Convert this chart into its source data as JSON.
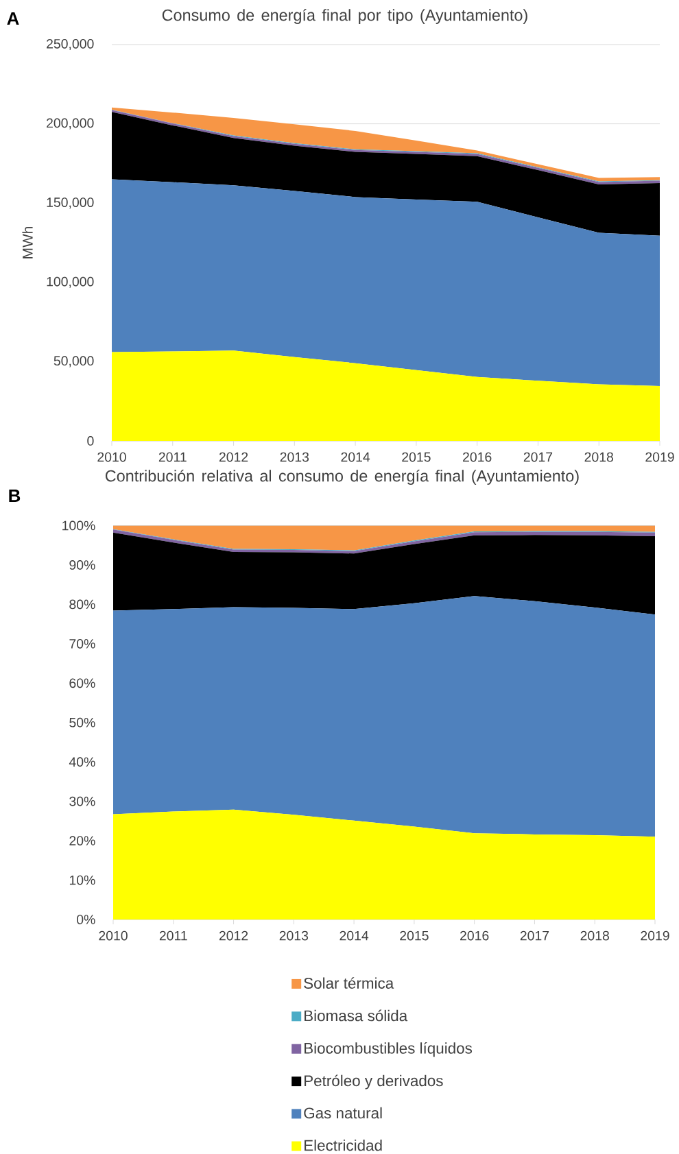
{
  "chart_data": [
    {
      "type": "area",
      "stacked": true,
      "title": "Consumo de energía final por tipo (Ayuntamiento)",
      "ylabel": "MWh",
      "annotations": [
        "A"
      ],
      "categories": [
        "2010",
        "2011",
        "2012",
        "2013",
        "2014",
        "2015",
        "2016",
        "2017",
        "2018",
        "2019"
      ],
      "ylim": [
        0,
        250000
      ],
      "yticks": [
        0,
        {
          "value": 50000,
          "label": "50,000"
        },
        {
          "value": 100000,
          "label": "100,000"
        },
        {
          "value": 150000,
          "label": "150,000"
        },
        {
          "value": 200000,
          "label": "200,000"
        },
        {
          "value": 250000,
          "label": "250,000"
        }
      ],
      "grid": "y",
      "series": [
        {
          "color": "#ffff00",
          "values": [
            56000,
            56400,
            57000,
            52900,
            49000,
            44700,
            40300,
            37900,
            35700,
            34600
          ]
        },
        {
          "color": "#4f81bd",
          "values": [
            109000,
            106800,
            104200,
            104800,
            104800,
            107500,
            110500,
            103100,
            95600,
            94800
          ]
        },
        {
          "color": "#000000",
          "values": [
            42500,
            35800,
            29900,
            28500,
            28500,
            28800,
            28800,
            29800,
            30500,
            33200
          ]
        },
        {
          "color": "#8064a2",
          "values": [
            1200,
            1200,
            1200,
            1200,
            1200,
            1300,
            1400,
            1400,
            1500,
            1500
          ]
        },
        {
          "color": "#4bacc6",
          "values": [
            200,
            200,
            400,
            400,
            400,
            400,
            400,
            400,
            400,
            400
          ]
        },
        {
          "color": "#f79646",
          "values": [
            1400,
            6700,
            11000,
            11900,
            11600,
            6700,
            1800,
            1900,
            2200,
            1900
          ]
        }
      ]
    },
    {
      "type": "area",
      "stacked": true,
      "title": "Contribución relativa al consumo de energía final (Ayuntamiento)",
      "annotations": [
        "B"
      ],
      "categories": [
        "2010",
        "2011",
        "2012",
        "2013",
        "2014",
        "2015",
        "2016",
        "2017",
        "2018",
        "2019"
      ],
      "ylim": [
        0,
        100
      ],
      "yticks": [
        {
          "value": 0,
          "label": "0%"
        },
        {
          "value": 10,
          "label": "10%"
        },
        {
          "value": 20,
          "label": "20%"
        },
        {
          "value": 30,
          "label": "30%"
        },
        {
          "value": 40,
          "label": "40%"
        },
        {
          "value": 50,
          "label": "50%"
        },
        {
          "value": 60,
          "label": "60%"
        },
        {
          "value": 70,
          "label": "70%"
        },
        {
          "value": 80,
          "label": "80%"
        },
        {
          "value": 90,
          "label": "90%"
        },
        {
          "value": 100,
          "label": "100%"
        }
      ],
      "grid": "y",
      "legend": "bottom",
      "series": [
        {
          "name": "Electricidad",
          "color": "#ffff00",
          "values": [
            26.7,
            27.4,
            27.9,
            26.6,
            25.1,
            23.6,
            21.9,
            21.6,
            21.4,
            21.0
          ]
        },
        {
          "name": "Gas natural",
          "color": "#4f81bd",
          "values": [
            51.7,
            51.4,
            51.4,
            52.5,
            53.7,
            56.7,
            60.2,
            59.2,
            57.8,
            56.4
          ]
        },
        {
          "name": "Petróleo y derivados",
          "color": "#000000",
          "values": [
            19.8,
            16.9,
            14.0,
            14.1,
            14.1,
            15.0,
            15.4,
            16.8,
            18.3,
            19.9
          ]
        },
        {
          "name": "Biocombustibles líquidos",
          "color": "#8064a2",
          "values": [
            0.8,
            0.7,
            0.6,
            0.6,
            0.6,
            0.7,
            0.8,
            0.8,
            0.9,
            0.9
          ]
        },
        {
          "name": "Biomasa sólida",
          "color": "#4bacc6",
          "values": [
            0.1,
            0.1,
            0.2,
            0.2,
            0.2,
            0.2,
            0.2,
            0.2,
            0.2,
            0.2
          ]
        },
        {
          "name": "Solar térmica",
          "color": "#f79646",
          "values": [
            0.9,
            3.5,
            5.9,
            6.0,
            6.3,
            3.8,
            1.5,
            1.4,
            1.4,
            1.6
          ]
        }
      ]
    }
  ]
}
